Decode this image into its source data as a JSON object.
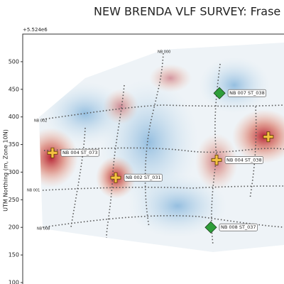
{
  "chart_data": {
    "type": "scatter",
    "title": "NEW BRENDA VLF SURVEY: Frase",
    "y_offset_label": "+5.524e6",
    "ylabel": "UTM Northing (m, Zone 10N)",
    "xlim": [
      0,
      100
    ],
    "ylim": [
      100,
      550
    ],
    "yticks": [
      100,
      150,
      200,
      250,
      300,
      350,
      400,
      450,
      500
    ],
    "series": [
      {
        "color": "#2e9e3a",
        "marker": "diamond",
        "x": [
          75.3,
          72.0
        ],
        "y": [
          443,
          200
        ],
        "labels": [
          "NB 007 ST_038",
          "NB 008 ST_037"
        ]
      },
      {
        "color": "#f5c242",
        "marker": "cross",
        "x": [
          11.4,
          35.6,
          74.2,
          94.0
        ],
        "y": [
          335,
          290,
          322,
          364
        ],
        "labels": [
          "NB 004 ST_073",
          "NB 002 ST_031",
          "NB 004 ST_038",
          null
        ]
      }
    ]
  }
}
